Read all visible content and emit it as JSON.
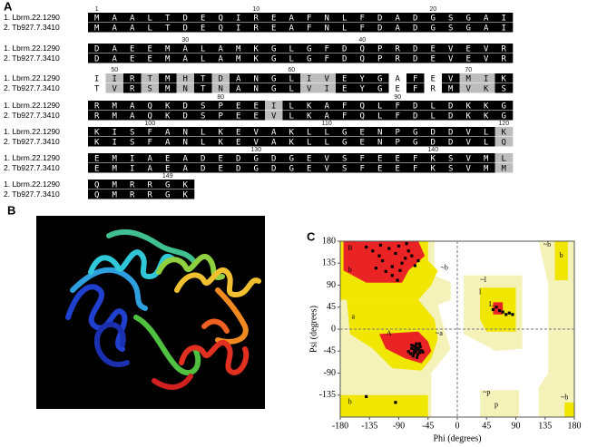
{
  "panel_labels": [
    "A",
    "B",
    "C"
  ],
  "alignment": {
    "names": [
      "1. Lbrm.22.1290",
      "2. Tb927.7.3410"
    ],
    "blocks": [
      {
        "ruler": [
          1,
          10,
          20
        ],
        "rows": [
          "MAALTDEQIREAFNLFDADGSGAI",
          "MAALTDEQIREAFNLFDADGSGAI"
        ],
        "shading": "bbbbbbbbbbbbbbbbbbbbbbbb"
      },
      {
        "ruler": [
          30,
          40
        ],
        "rows": [
          "DAEEMALAMKGLGFDQPRDEVEVR",
          "DAEEMALAMKGLGFDQPRDEVEVR"
        ],
        "shading": "bbbbbbbbbbbbbbbbbbbbbbbb"
      },
      {
        "ruler": [
          50,
          60,
          70
        ],
        "rows": [
          "IIRTMHTDANGLIVEYGAFEVMIK",
          "TVRSMNTNANGLVIEYGEFRMVKS"
        ],
        "shading": "wgbgbgbgbbbbggbbbwbwbggb"
      },
      {
        "ruler": [
          80,
          90
        ],
        "rows": [
          "RMAQKDSPEEILKAFQLFDLDKKG",
          "RMAQKDSPEEVLKAFQLFDLDKKG"
        ],
        "shading": "bbbbbbbbbbgbbbbbbbbbbbbb"
      },
      {
        "ruler": [
          100,
          110,
          120
        ],
        "rows": [
          "KISFANLKEVAKLLGENPGDDVLK",
          "KISFANLKEVAKLLGENPGDDVLQ"
        ],
        "shading": "bbbbbbbbbbbbbbbbbbbbbbbg"
      },
      {
        "ruler": [
          130,
          140
        ],
        "rows": [
          "EMIAEADEDGDGEVSFEEFKSVML",
          "EMIAEADEDGDGEVSFEEFKSVMM"
        ],
        "shading": "bbbbbbbbbbbbbbbbbbbbbbbg"
      },
      {
        "ruler": [
          149
        ],
        "rows": [
          "QMRRGK",
          "QMRRGK"
        ],
        "shading": "bbbbbb"
      }
    ]
  },
  "chart_data": {
    "type": "scatter",
    "x_label": "Phi (degrees)",
    "y_label": "Psi (degrees)",
    "xlim": [
      -180,
      180
    ],
    "ylim": [
      -180,
      180
    ],
    "xticks": [
      -180,
      -135,
      -90,
      -45,
      0,
      45,
      90,
      135,
      180
    ],
    "yticks": [
      -135,
      -90,
      -45,
      0,
      45,
      90,
      135,
      180
    ],
    "color": "#000000",
    "x": [
      -130,
      -120,
      -115,
      -105,
      -100,
      -95,
      -90,
      -85,
      -80,
      -75,
      -125,
      -110,
      -70,
      -65,
      -140,
      -100,
      -88,
      -78,
      -118,
      -60,
      -92,
      -70,
      -65,
      -62,
      -60,
      -58,
      -66,
      -72,
      -55,
      -63,
      -68,
      -61,
      -57,
      -64,
      -59,
      -66,
      -70,
      -62,
      -53,
      -75,
      -60,
      -67,
      -58,
      -64,
      60,
      65,
      70,
      75,
      80,
      85,
      55,
      -140,
      -95
    ],
    "y": [
      160,
      150,
      140,
      165,
      128,
      155,
      170,
      135,
      145,
      160,
      125,
      118,
      150,
      130,
      168,
      110,
      120,
      175,
      172,
      140,
      100,
      -40,
      -45,
      -38,
      -42,
      -48,
      -35,
      -50,
      -44,
      -30,
      -55,
      -52,
      -36,
      -46,
      -40,
      -43,
      -33,
      -58,
      -47,
      -46,
      -41,
      -49,
      -30,
      -37,
      45,
      38,
      35,
      30,
      33,
      30,
      40,
      -138,
      -150
    ],
    "annotations": [
      {
        "text": "B",
        "x": -165,
        "y": 165
      },
      {
        "text": "b",
        "x": -165,
        "y": 120
      },
      {
        "text": "~b",
        "x": -20,
        "y": 125
      },
      {
        "text": "A",
        "x": -105,
        "y": -10
      },
      {
        "text": "a",
        "x": -160,
        "y": 25
      },
      {
        "text": "~a",
        "x": -28,
        "y": -10
      },
      {
        "text": "L",
        "x": 52,
        "y": 50
      },
      {
        "text": "l",
        "x": 35,
        "y": 75
      },
      {
        "text": "~l",
        "x": 40,
        "y": 100
      },
      {
        "text": "p",
        "x": 60,
        "y": -155
      },
      {
        "text": "~p",
        "x": 45,
        "y": -130
      },
      {
        "text": "~b",
        "x": 138,
        "y": 172
      },
      {
        "text": "b",
        "x": 160,
        "y": 150
      },
      {
        "text": "b",
        "x": -165,
        "y": -150
      },
      {
        "text": "~b",
        "x": 165,
        "y": -140
      }
    ]
  }
}
